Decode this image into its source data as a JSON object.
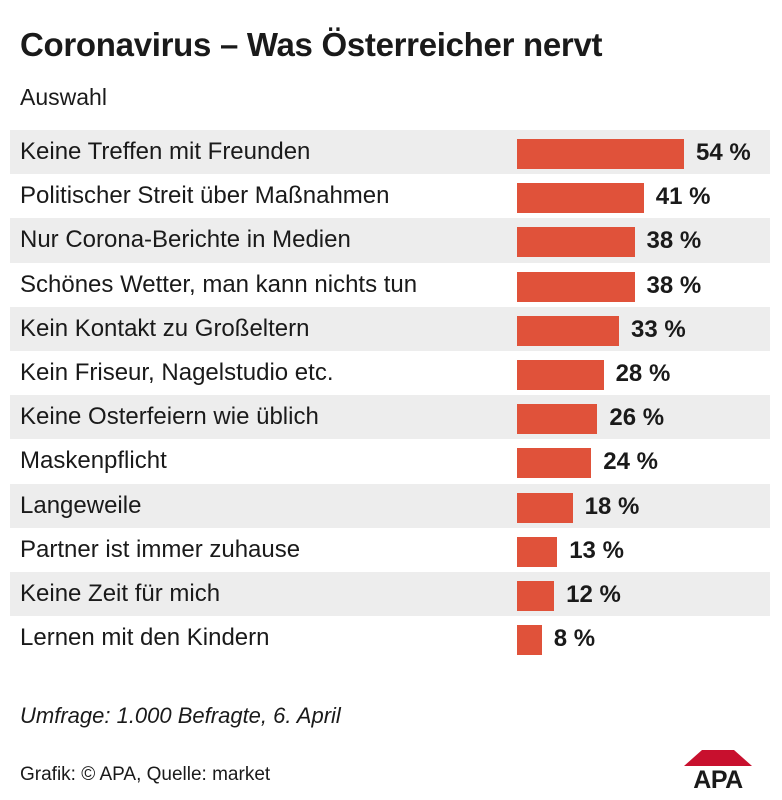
{
  "chart_data": {
    "type": "bar",
    "orientation": "horizontal",
    "title": "Coronavirus – Was Österreicher nervt",
    "subtitle": "Auswahl",
    "categories": [
      "Keine Treffen mit Freunden",
      "Politischer Streit über Maßnahmen",
      "Nur Corona-Berichte in Medien",
      "Schönes Wetter, man kann nichts tun",
      "Kein Kontakt zu Großeltern",
      "Kein Friseur, Nagelstudio etc.",
      "Keine Osterfeiern wie üblich",
      "Maskenpflicht",
      "Langeweile",
      "Partner ist immer zuhause",
      "Keine Zeit für mich",
      "Lernen mit den Kindern"
    ],
    "values": [
      54,
      41,
      38,
      38,
      33,
      28,
      26,
      24,
      18,
      13,
      12,
      8
    ],
    "value_suffix": " %",
    "bar_color": "#e0523a",
    "row_shading": "alternating",
    "axes": "none",
    "grid": false
  },
  "footer": {
    "note": "Umfrage: 1.000 Befragte, 6. April",
    "credit": "Grafik: © APA, Quelle: market",
    "logo_text": "APA"
  },
  "colors": {
    "bar": "#e0523a",
    "row_shade": "#ededed",
    "text": "#1a1a1a",
    "logo": "#c8102e"
  }
}
